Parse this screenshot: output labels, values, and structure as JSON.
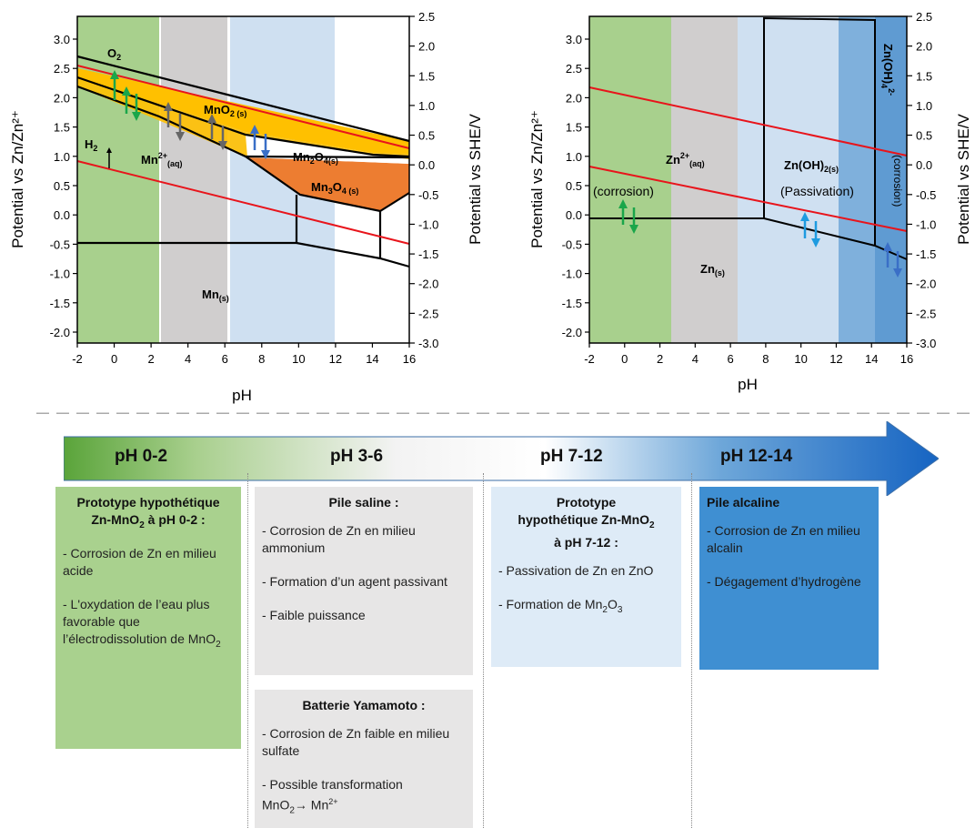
{
  "left_chart": {
    "x_ticks": [
      "-2",
      "0",
      "2",
      "4",
      "6",
      "8",
      "10",
      "12",
      "14",
      "16"
    ],
    "y_left_ticks": [
      "3.0",
      "2.5",
      "2.0",
      "1.5",
      "1.0",
      "0.5",
      "0.0",
      "-0.5",
      "-1.0",
      "-1.5",
      "-2.0"
    ],
    "y_right_ticks": [
      "2.5",
      "2.0",
      "1.5",
      "1.0",
      "0.5",
      "0.0",
      "-0.5",
      "-1.0",
      "-1.5",
      "-2.0",
      "-2.5",
      "-3.0"
    ],
    "xlabel": "pH",
    "ylabel_left": "Potential vs Zn/Zn²⁺",
    "ylabel_right": "Potential vs SHE/V",
    "labels": {
      "o2": "O",
      "o2_sub": "2",
      "h2": "H",
      "h2_sub": "2",
      "mn2": "Mn",
      "mn2_sup": "2+",
      "mn2_sub": "(aq)",
      "mno2": "MnO",
      "mno2_sub": "2 (s)",
      "mn2o4_a": "Mn",
      "mn2o4_b": "2",
      "mn2o4_c": "O",
      "mn2o4_d": "4(s)",
      "mn3o4_a": "Mn",
      "mn3o4_b": "3",
      "mn3o4_c": "O",
      "mn3o4_d": "4 (s)",
      "mns": "Mn",
      "mns_sub": "(s)"
    }
  },
  "right_chart": {
    "x_ticks": [
      "-2",
      "0",
      "2",
      "4",
      "6",
      "8",
      "10",
      "12",
      "14",
      "16"
    ],
    "y_left_ticks": [
      "3.0",
      "2.5",
      "2.0",
      "1.5",
      "1.0",
      "0.5",
      "0.0",
      "-0.5",
      "-1.0",
      "-1.5",
      "-2.0"
    ],
    "y_right_ticks": [
      "2.5",
      "2.0",
      "1.5",
      "1.0",
      "0.5",
      "0.0",
      "-0.5",
      "-1.0",
      "-1.5",
      "-2.0",
      "-2.5",
      "-3.0"
    ],
    "xlabel": "pH",
    "ylabel_left": "Potential vs Zn/Zn²⁺",
    "ylabel_right": "Potential vs SHE/V",
    "labels": {
      "zn2": "Zn",
      "zn2_sup": "2+",
      "zn2_sub": "(aq)",
      "corrosion1": "(corrosion)",
      "znoh2": "Zn(OH)",
      "znoh2_sub": "2(s)",
      "passivation": "(Passivation)",
      "zns": "Zn",
      "zns_sub": "(s)",
      "znoh4": "Zn(OH)",
      "znoh4_sub": "4",
      "znoh4_sup": "2-",
      "corrosion2": "(corrosion)"
    }
  },
  "colors": {
    "green": "#a8d08d",
    "grey": "#d0cece",
    "lightblue": "#c7dcef",
    "blue": "#7fb0dc",
    "orange_band": "#ffc000",
    "orange_dark": "#ed7d31",
    "red": "#e8141b"
  },
  "ph_bar": {
    "labels": [
      "pH 0-2",
      "pH 3-6",
      "pH 7-12",
      "pH 12-14"
    ]
  },
  "boxes": {
    "b1": {
      "title_a": "Prototype hypothétique",
      "title_b": "Zn-MnO",
      "title_b_sub": "2",
      "title_c": " à pH 0-2 :",
      "p1": "- Corrosion de Zn en milieu acide",
      "p2": "- L'oxydation de l’eau plus favorable que l’électrodissolution de MnO",
      "p2_sub": "2"
    },
    "b2": {
      "title": "Pile saline :",
      "p1": "- Corrosion de Zn en milieu ammonium",
      "p2": "- Formation  d’un agent passivant",
      "p3": "- Faible puissance"
    },
    "b3": {
      "title": "Batterie Yamamoto :",
      "p1": "- Corrosion de Zn faible en milieu sulfate",
      "p2": "- Possible transformation",
      "p2_a": "MnO",
      "p2_a_sub": "2",
      "p2_arrow": "→",
      "p2_b": " Mn",
      "p2_b_sup": "2+"
    },
    "b4": {
      "title_a": "Prototype",
      "title_b": "hypothétique Zn-MnO",
      "title_b_sub": "2",
      "title_c": "à pH 7-12 :",
      "p1": "- Passivation de Zn en ZnO",
      "p2": "- Formation de Mn",
      "p2_sub1": "2",
      "p2_mid": "O",
      "p2_sub2": "3"
    },
    "b5": {
      "title": "Pile alcaline",
      "p1": "- Corrosion de Zn en milieu alcalin",
      "p2": "- Dégagement d’hydrogène"
    }
  }
}
